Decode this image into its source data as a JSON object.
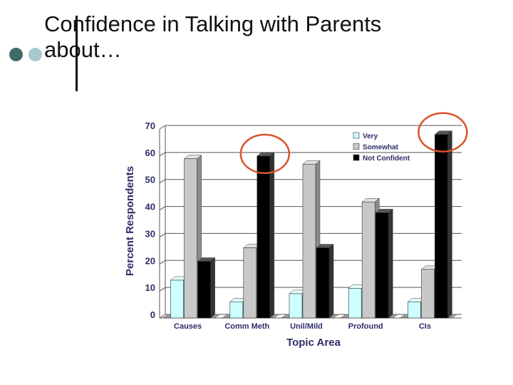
{
  "slide": {
    "title_line1": "Confidence in Talking with Parents",
    "title_line2": "about…"
  },
  "colors": {
    "very": "#ccffff",
    "somewhat": "#c8c8c8",
    "not_confident": "#000000",
    "highlight_circle": "#d9532b",
    "text": "#2d2d6a"
  },
  "chart_data": {
    "type": "bar",
    "title": "",
    "xlabel": "Topic Area",
    "ylabel": "Percent Respondents",
    "ylim": [
      0,
      70
    ],
    "yticks": [
      "0",
      "10",
      "20",
      "30",
      "40",
      "50",
      "60",
      "70"
    ],
    "categories": [
      "Causes",
      "Comm Meth",
      "Unil/Mild",
      "Profound",
      "CIs"
    ],
    "series": [
      {
        "name": "Very",
        "values": [
          14,
          6,
          9,
          11,
          6
        ]
      },
      {
        "name": "Somewhat",
        "values": [
          59,
          26,
          57,
          43,
          18
        ]
      },
      {
        "name": "Not Confident",
        "values": [
          21,
          60,
          26,
          39,
          68
        ]
      }
    ],
    "legend_position": "top-right",
    "grid": true,
    "chart_style": "3d",
    "highlighted": [
      {
        "category": "Comm Meth",
        "series": "Not Confident"
      },
      {
        "category": "CIs",
        "series": "Not Confident"
      }
    ]
  }
}
